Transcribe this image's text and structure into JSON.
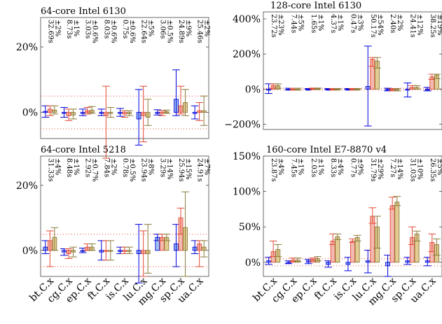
{
  "categories": [
    "bt.C.x",
    "cg.C.x",
    "ep.C.x",
    "ft.C.x",
    "is.C.x",
    "lu.C.x",
    "mg.C.x",
    "sp.C.x",
    "ua.C.x"
  ],
  "chart_data": [
    {
      "type": "bar",
      "title": "64-core Intel 6130",
      "ylim": [
        -8,
        29
      ],
      "yticks": [
        0,
        20
      ],
      "ytick_labels": [
        "0%",
        "20%"
      ],
      "ref_lines": [
        -5,
        5
      ],
      "annotations": [
        [
          "32.69s",
          "±2%"
        ],
        [
          "8.73s",
          "±1%"
        ],
        [
          "3.03s",
          "±0.6%"
        ],
        [
          "8.03s",
          "±0.6%"
        ],
        [
          "0.75s",
          "±0.6%"
        ],
        [
          "22.64s",
          "±5%"
        ],
        [
          "3.06s",
          "±0.5%"
        ],
        [
          "24.89s",
          "±9%"
        ],
        [
          "25.46s",
          "±2%"
        ]
      ],
      "series": [
        {
          "values": [
            0.3,
            0.0,
            0.0,
            -0.2,
            0.0,
            -2.0,
            0.0,
            4.0,
            0.0
          ],
          "err_low": [
            -1.5,
            -1.5,
            -1.0,
            -1.0,
            -1.2,
            -10,
            -0.8,
            -1.0,
            -2.0
          ],
          "err_high": [
            2.0,
            1.5,
            1.0,
            1.0,
            1.2,
            7.0,
            0.8,
            13.0,
            2.0
          ]
        },
        {
          "values": [
            1.0,
            -1.0,
            0.5,
            -1.0,
            -0.5,
            -1.0,
            -0.3,
            2.0,
            0.5
          ],
          "err_low": [
            -1.0,
            -2.5,
            -0.5,
            -14,
            -1.5,
            -9.0,
            -1.0,
            -0.5,
            -2.5
          ],
          "err_high": [
            2.0,
            1.0,
            1.5,
            8.0,
            0.5,
            8.0,
            0.5,
            8.0,
            3.0
          ]
        },
        {
          "values": [
            0.7,
            -0.8,
            0.7,
            0.0,
            -0.4,
            -1.5,
            0.2,
            3.0,
            0.5
          ],
          "err_low": [
            -0.5,
            -2.0,
            -0.3,
            -1.5,
            -1.0,
            -4.0,
            -0.3,
            -1.0,
            -4.0
          ],
          "err_high": [
            2.0,
            1.0,
            1.8,
            1.5,
            0.5,
            4.0,
            0.7,
            7.0,
            5.0
          ]
        }
      ]
    },
    {
      "type": "bar",
      "title": "128-core Intel 6130",
      "ylim": [
        -230,
        440
      ],
      "yticks": [
        -200,
        0,
        200,
        400
      ],
      "ytick_labels": [
        "−200%",
        "0%",
        "200%",
        "400%"
      ],
      "ref_lines": [
        -5,
        5
      ],
      "annotations": [
        [
          "23.72s",
          "±23%"
        ],
        [
          "7.44s",
          "±5%"
        ],
        [
          "1.65s",
          "±1%"
        ],
        [
          "4.37s",
          "±1%"
        ],
        [
          "0.47s",
          "±3%"
        ],
        [
          "50.17s",
          "±54%"
        ],
        [
          "2.40s",
          "±2%"
        ],
        [
          "24.41s",
          "±12%"
        ],
        [
          "38.25s",
          "±19%"
        ]
      ],
      "series": [
        {
          "values": [
            0,
            0,
            0,
            0,
            0,
            15,
            0,
            0,
            0
          ],
          "err_low": [
            -25,
            -5,
            -3,
            -3,
            -3,
            -210,
            -10,
            -45,
            -10
          ],
          "err_high": [
            30,
            5,
            3,
            3,
            3,
            245,
            5,
            35,
            10
          ]
        },
        {
          "values": [
            20,
            0,
            3,
            0,
            0,
            170,
            -5,
            10,
            70
          ],
          "err_low": [
            5,
            -5,
            0,
            -3,
            -3,
            130,
            -10,
            0,
            55
          ],
          "err_high": [
            30,
            5,
            6,
            3,
            3,
            180,
            3,
            20,
            85
          ]
        },
        {
          "values": [
            20,
            0,
            3,
            0,
            0,
            160,
            -5,
            10,
            80
          ],
          "err_low": [
            5,
            -5,
            0,
            -3,
            -3,
            120,
            -10,
            0,
            60
          ],
          "err_high": [
            30,
            5,
            6,
            3,
            3,
            180,
            3,
            20,
            85
          ]
        }
      ]
    },
    {
      "type": "bar",
      "title": "64-core Intel 5218",
      "ylim": [
        -8,
        29
      ],
      "yticks": [
        0,
        20
      ],
      "ytick_labels": [
        "0%",
        "20%"
      ],
      "ref_lines": [
        -5,
        5
      ],
      "annotations": [
        [
          "31.33s",
          "±4%"
        ],
        [
          "8.48s",
          "±1%"
        ],
        [
          "2.92s",
          "±0.7%"
        ],
        [
          "7.84s",
          "±2%"
        ],
        [
          "0.78s",
          "±0.5%"
        ],
        [
          "23.94s",
          "±8%"
        ],
        [
          "3.29s",
          "±14%"
        ],
        [
          "25.94s",
          "±15%"
        ],
        [
          "24.91s",
          "±7%"
        ]
      ],
      "series": [
        {
          "values": [
            1.0,
            -0.5,
            0.0,
            -0.5,
            0.0,
            -1.0,
            4.0,
            2.0,
            1.0
          ],
          "err_low": [
            -1.0,
            -1.5,
            -0.7,
            -3.0,
            -1.0,
            -10,
            3.0,
            -5.0,
            -1.0
          ],
          "err_high": [
            3.0,
            0.5,
            0.7,
            3.0,
            1.0,
            8.0,
            5.0,
            8.0,
            3.0
          ]
        },
        {
          "values": [
            3.0,
            -1.0,
            1.0,
            0.0,
            0.0,
            -1.0,
            4.0,
            10.0,
            2.0
          ],
          "err_low": [
            -5.0,
            -2.5,
            0.0,
            -3.0,
            -1.0,
            -8.0,
            3.0,
            5.0,
            -5.0
          ],
          "err_high": [
            6.0,
            0.5,
            2.0,
            3.0,
            1.0,
            6.0,
            5.0,
            13.0,
            3.0
          ]
        },
        {
          "values": [
            4.0,
            -0.5,
            1.0,
            0.0,
            0.0,
            -1.0,
            4.0,
            7.0,
            1.0
          ],
          "err_low": [
            0.0,
            -2.0,
            0.0,
            -3.0,
            -1.0,
            -7.0,
            3.0,
            -8.0,
            -2.0
          ],
          "err_high": [
            7.0,
            1.0,
            2.0,
            3.0,
            1.0,
            8.0,
            5.0,
            18.0,
            3.0
          ]
        }
      ]
    },
    {
      "type": "bar",
      "title": "160-core Intel E7-8870 v4",
      "ylim": [
        -20,
        150
      ],
      "yticks": [
        0,
        50,
        100,
        150
      ],
      "ytick_labels": [
        "0%",
        "50%",
        "100%",
        "150%"
      ],
      "ref_lines": [
        -5,
        5
      ],
      "annotations": [
        [
          "23.87s",
          "±4%"
        ],
        [
          "7.45s",
          "±1%"
        ],
        [
          "2.03s",
          "±1%"
        ],
        [
          "8.33s",
          "±4%"
        ],
        [
          "0.77s",
          "±9%"
        ],
        [
          "31.79s",
          "±29%"
        ],
        [
          "7.27s",
          "±14%"
        ],
        [
          "31.03s",
          "±10%"
        ],
        [
          "26.35s",
          "±5%"
        ]
      ],
      "series": [
        {
          "values": [
            2,
            0,
            2,
            -3,
            -3,
            2,
            -5,
            2,
            2
          ],
          "err_low": [
            -3,
            -2,
            -2,
            -7,
            -12,
            -15,
            -20,
            -3,
            -5
          ],
          "err_high": [
            7,
            2,
            4,
            2,
            7,
            17,
            10,
            7,
            7
          ]
        },
        {
          "values": [
            15,
            3,
            4,
            30,
            30,
            65,
            80,
            35,
            28
          ],
          "err_low": [
            8,
            1,
            2,
            25,
            28,
            55,
            75,
            25,
            15
          ],
          "err_high": [
            30,
            6,
            6,
            40,
            33,
            77,
            92,
            50,
            40
          ]
        },
        {
          "values": [
            18,
            3,
            5,
            36,
            35,
            50,
            85,
            40,
            25
          ],
          "err_low": [
            8,
            1,
            2,
            32,
            30,
            20,
            80,
            30,
            10
          ],
          "err_high": [
            25,
            6,
            8,
            40,
            38,
            65,
            93,
            44,
            33
          ]
        }
      ]
    }
  ]
}
